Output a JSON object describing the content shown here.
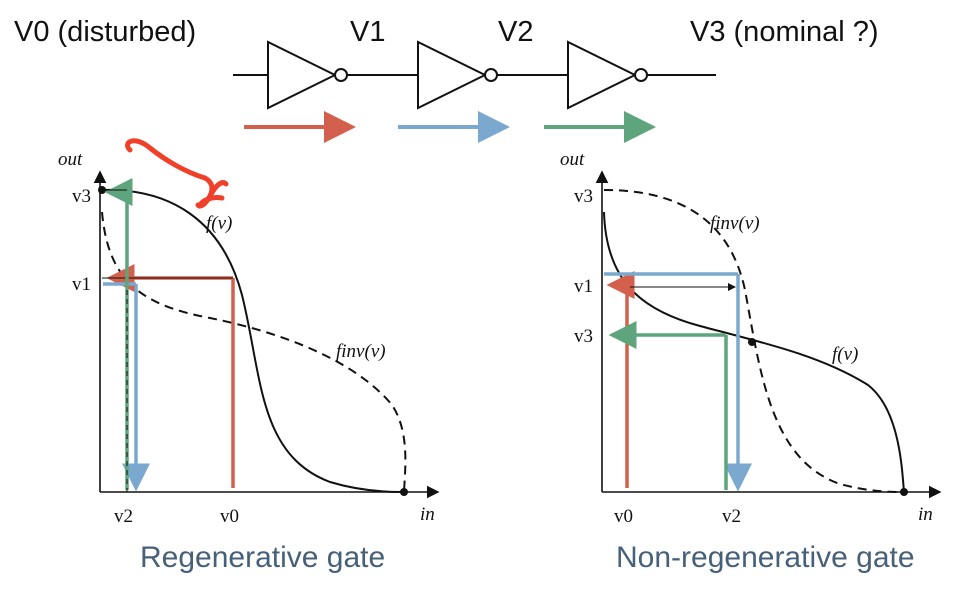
{
  "header": {
    "v0": "V0 (disturbed)",
    "v1": "V1",
    "v2": "V2",
    "v3": "V3 (nominal ?)"
  },
  "colors": {
    "red": "#d2604c",
    "blue": "#7aa8cf",
    "green": "#5ea47d",
    "curve": "#111111",
    "caption": "#46607a",
    "annotation": "#f0402a"
  },
  "left_plot": {
    "axis_y": "out",
    "axis_x": "in",
    "curve_label": "f(v)",
    "inverse_label": "finv(v)",
    "y_labels": {
      "v3": "v3",
      "v1": "v1"
    },
    "x_labels": {
      "v2": "v2",
      "v0": "v0"
    },
    "caption": "Regenerative gate"
  },
  "right_plot": {
    "axis_y": "out",
    "axis_x": "in",
    "curve_label": "f(v)",
    "inverse_label": "finv(v)",
    "y_labels": {
      "v3": "v3",
      "v1": "v1",
      "v3b": "v3"
    },
    "x_labels": {
      "v0": "v0",
      "v2": "v2"
    },
    "caption": "Non-regenerative gate"
  }
}
